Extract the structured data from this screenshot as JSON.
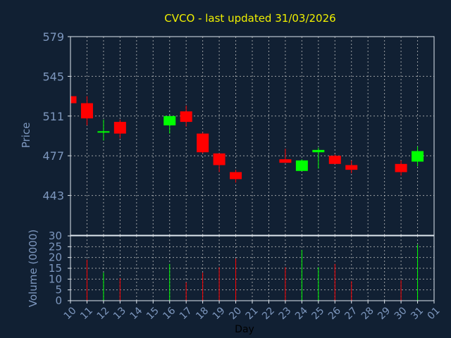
{
  "chart_data": {
    "type": "candlestick",
    "title": "CVCO - last updated 31/03/2026",
    "ylabel": "Price",
    "volume_label": "Volume (0000)",
    "xlabel": "Day",
    "price_ticks": [
      "579",
      "545",
      "511",
      "477",
      "443"
    ],
    "volume_ticks": [
      "30",
      "25",
      "20",
      "15",
      "10",
      "5",
      "0"
    ],
    "ylim": [
      409,
      579
    ],
    "volume_ylim": [
      0,
      30
    ],
    "grid": true,
    "x_ticks": [
      "10",
      "11",
      "12",
      "13",
      "14",
      "15",
      "16",
      "17",
      "18",
      "19",
      "20",
      "21",
      "22",
      "23",
      "24",
      "25",
      "26",
      "27",
      "28",
      "29",
      "30",
      "31",
      "01"
    ],
    "candles": [
      {
        "day": "10",
        "open": 528,
        "high": 528,
        "low": 522,
        "close": 522
      },
      {
        "day": "11",
        "open": 522,
        "high": 528,
        "low": 503,
        "close": 509
      },
      {
        "day": "12",
        "open": 497,
        "high": 508,
        "low": 490,
        "close": 498
      },
      {
        "day": "13",
        "open": 506,
        "high": 508,
        "low": 492,
        "close": 496
      },
      {
        "day": "16",
        "open": 503,
        "high": 511,
        "low": 496,
        "close": 511
      },
      {
        "day": "17",
        "open": 515,
        "high": 520,
        "low": 502,
        "close": 506
      },
      {
        "day": "18",
        "open": 496,
        "high": 497,
        "low": 479,
        "close": 480
      },
      {
        "day": "19",
        "open": 479,
        "high": 479,
        "low": 463,
        "close": 469
      },
      {
        "day": "20",
        "open": 463,
        "high": 465,
        "low": 454,
        "close": 457
      },
      {
        "day": "23",
        "open": 474,
        "high": 483,
        "low": 471,
        "close": 471
      },
      {
        "day": "24",
        "open": 464,
        "high": 474,
        "low": 464,
        "close": 473
      },
      {
        "day": "25",
        "open": 480,
        "high": 484,
        "low": 466,
        "close": 482
      },
      {
        "day": "26",
        "open": 477,
        "high": 478,
        "low": 470,
        "close": 470
      },
      {
        "day": "27",
        "open": 469,
        "high": 473,
        "low": 462,
        "close": 465
      },
      {
        "day": "30",
        "open": 470,
        "high": 473,
        "low": 460,
        "close": 463
      },
      {
        "day": "31",
        "open": 472,
        "high": 485,
        "low": 468,
        "close": 481
      }
    ],
    "volume": [
      {
        "day": "11",
        "value": 19
      },
      {
        "day": "12",
        "value": 13
      },
      {
        "day": "13",
        "value": 10.5
      },
      {
        "day": "16",
        "value": 17
      },
      {
        "day": "17",
        "value": 8.5
      },
      {
        "day": "18",
        "value": 13
      },
      {
        "day": "19",
        "value": 15.5
      },
      {
        "day": "20",
        "value": 19.5
      },
      {
        "day": "23",
        "value": 15.5
      },
      {
        "day": "24",
        "value": 23.5
      },
      {
        "day": "25",
        "value": 15.5
      },
      {
        "day": "26",
        "value": 17
      },
      {
        "day": "27",
        "value": 9
      },
      {
        "day": "30",
        "value": 9.5
      },
      {
        "day": "31",
        "value": 26
      }
    ],
    "colors": {
      "background": "#112033",
      "up": "#00ff00",
      "down": "#ff0000",
      "grid": "#c8c8c8",
      "frame": "#e0e8f0",
      "text": "#7d97be",
      "title": "#f0f000"
    }
  }
}
